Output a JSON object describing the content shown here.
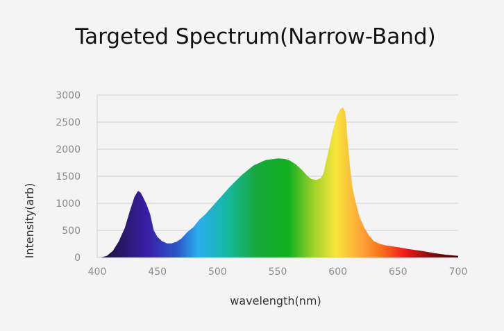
{
  "chart_data": {
    "type": "area",
    "title": "Targeted Spectrum(Narrow-Band)",
    "xlabel": "wavelength(nm)",
    "ylabel": "Intensity(arb)",
    "xlim": [
      400,
      700
    ],
    "ylim": [
      0,
      3000
    ],
    "x_ticks": [
      400,
      450,
      500,
      550,
      600,
      650,
      700
    ],
    "y_ticks": [
      0,
      500,
      1000,
      1500,
      2000,
      2500,
      3000
    ],
    "grid": "horizontal",
    "series": [
      {
        "x": [
          403,
          408,
          413,
          418,
          423,
          427,
          431,
          434,
          436,
          438,
          441,
          444,
          447,
          450,
          454,
          458,
          462,
          466,
          470,
          475,
          480,
          485,
          490,
          500,
          510,
          520,
          530,
          540,
          550,
          556,
          560,
          565,
          570,
          575,
          578,
          582,
          586,
          588,
          590,
          593,
          596,
          599,
          602,
          604,
          606,
          607,
          608,
          610,
          612,
          615,
          618,
          622,
          626,
          630,
          635,
          640,
          650,
          660,
          670,
          680,
          690,
          700
        ],
        "y": [
          0,
          30,
          120,
          300,
          550,
          850,
          1120,
          1230,
          1200,
          1120,
          980,
          800,
          500,
          380,
          300,
          260,
          260,
          290,
          350,
          470,
          560,
          700,
          800,
          1050,
          1300,
          1520,
          1700,
          1800,
          1830,
          1820,
          1790,
          1720,
          1620,
          1500,
          1450,
          1430,
          1470,
          1550,
          1750,
          2050,
          2350,
          2600,
          2740,
          2770,
          2700,
          2500,
          2200,
          1700,
          1300,
          1000,
          750,
          550,
          400,
          300,
          250,
          220,
          190,
          150,
          120,
          80,
          50,
          30
        ]
      }
    ]
  }
}
